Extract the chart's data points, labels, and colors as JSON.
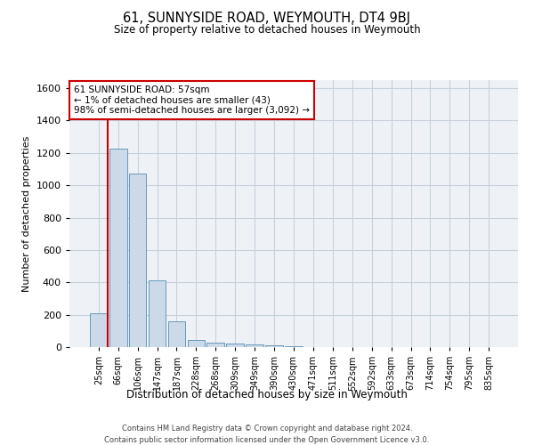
{
  "title": "61, SUNNYSIDE ROAD, WEYMOUTH, DT4 9BJ",
  "subtitle": "Size of property relative to detached houses in Weymouth",
  "xlabel": "Distribution of detached houses by size in Weymouth",
  "ylabel": "Number of detached properties",
  "bar_color": "#ccd9e8",
  "bar_edge_color": "#6699bb",
  "categories": [
    "25sqm",
    "66sqm",
    "106sqm",
    "147sqm",
    "187sqm",
    "228sqm",
    "268sqm",
    "309sqm",
    "349sqm",
    "390sqm",
    "430sqm",
    "471sqm",
    "511sqm",
    "552sqm",
    "592sqm",
    "633sqm",
    "673sqm",
    "714sqm",
    "754sqm",
    "795sqm",
    "835sqm"
  ],
  "values": [
    207,
    1225,
    1070,
    410,
    160,
    45,
    28,
    20,
    15,
    12,
    8,
    0,
    0,
    0,
    0,
    0,
    0,
    0,
    0,
    0,
    0
  ],
  "ylim": [
    0,
    1650
  ],
  "yticks": [
    0,
    200,
    400,
    600,
    800,
    1000,
    1200,
    1400,
    1600
  ],
  "annotation_text": "61 SUNNYSIDE ROAD: 57sqm\n← 1% of detached houses are smaller (43)\n98% of semi-detached houses are larger (3,092) →",
  "vline_x_index": 0.5,
  "annotation_box_color": "#ffffff",
  "annotation_box_edge_color": "#cc0000",
  "grid_color": "#c8d0dc",
  "background_color": "#eef2f7",
  "footer_line1": "Contains HM Land Registry data © Crown copyright and database right 2024.",
  "footer_line2": "Contains public sector information licensed under the Open Government Licence v3.0."
}
